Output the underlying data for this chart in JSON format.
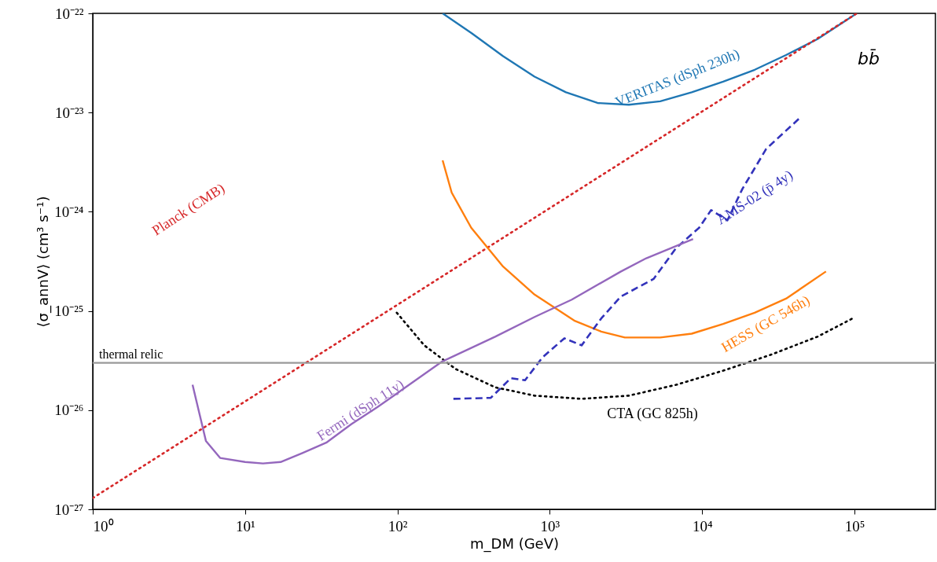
{
  "chart_data": {
    "type": "line",
    "xlabel": "m_DM (GeV)",
    "ylabel": "⟨σ_annV⟩ (cm³ s⁻¹)",
    "log": "xy",
    "xlim": [
      1,
      340000
    ],
    "ylim": [
      1e-27,
      1e-22
    ],
    "xticks": [
      {
        "value": 1,
        "label": "10⁰"
      },
      {
        "value": 10,
        "label": "10¹"
      },
      {
        "value": 100,
        "label": "10²"
      },
      {
        "value": 1000,
        "label": "10³"
      },
      {
        "value": 10000,
        "label": "10⁴"
      },
      {
        "value": 100000,
        "label": "10⁵"
      }
    ],
    "yticks": [
      {
        "value": 1e-27,
        "label": "10⁻²⁷"
      },
      {
        "value": 1e-26,
        "label": "10⁻²⁶"
      },
      {
        "value": 1e-25,
        "label": "10⁻²⁵"
      },
      {
        "value": 1e-24,
        "label": "10⁻²⁴"
      },
      {
        "value": 1e-23,
        "label": "10⁻²³"
      },
      {
        "value": 1e-22,
        "label": "10⁻²²"
      }
    ],
    "series": [
      {
        "name": "VERITAS (dSph 230h)",
        "color": "#1f77b4",
        "line_style": "solid",
        "x": [
          198,
          307,
          494,
          794,
          1276,
          2056,
          3304,
          5309,
          8551,
          13740,
          22130,
          35560,
          57150,
          103500
        ],
        "values": [
          1e-22,
          6.3e-23,
          3.7e-23,
          2.3e-23,
          1.6e-23,
          1.25e-23,
          1.2e-23,
          1.3e-23,
          1.6e-23,
          2.05e-23,
          2.7e-23,
          3.8e-23,
          5.5e-23,
          1e-22
        ]
      },
      {
        "name": "Planck (CMB)",
        "color": "#d62728",
        "line_style": "dotted",
        "x": [
          1,
          103500
        ],
        "values": [
          1.3e-27,
          1e-22
        ]
      },
      {
        "name": "HESS (GC 546h)",
        "color": "#ff7f0e",
        "line_style": "solid",
        "x": [
          198,
          227,
          305,
          494,
          795,
          1446,
          2175,
          3110,
          5309,
          8551,
          13740,
          22130,
          35560,
          65000
        ],
        "values": [
          3.3e-24,
          1.56e-24,
          6.9e-25,
          2.8e-25,
          1.46e-25,
          8e-26,
          6.2e-26,
          5.4e-26,
          5.4e-26,
          5.9e-26,
          7.4e-26,
          9.6e-26,
          1.33e-25,
          2.5e-25
        ]
      },
      {
        "name": "CTA (GC 825h)",
        "color": "#000000",
        "line_style": "dotted",
        "x": [
          99,
          150,
          241,
          438,
          795,
          1618,
          3304,
          6745,
          13740,
          27970,
          57150,
          100000
        ],
        "values": [
          9.6e-26,
          4.5e-26,
          2.6e-26,
          1.7e-26,
          1.4e-26,
          1.3e-26,
          1.4e-26,
          1.8e-26,
          2.5e-26,
          3.6e-26,
          5.5e-26,
          8.6e-26
        ]
      },
      {
        "name": "AMS-02 (p̄ 4y)",
        "color": "#3333bb",
        "line_style": "dashed",
        "x": [
          233,
          410,
          555,
          688,
          895,
          1247,
          1618,
          2175,
          2933,
          4800,
          6745,
          9560,
          11460,
          14660,
          18380,
          26340,
          43700
        ],
        "values": [
          1.3e-26,
          1.33e-26,
          2.1e-26,
          2e-26,
          3.4e-26,
          5.3e-26,
          4.5e-26,
          8.4e-26,
          1.4e-25,
          2.1e-25,
          4.3e-25,
          6.9e-25,
          1.04e-24,
          8.2e-25,
          1.7e-24,
          4.3e-24,
          8.8e-24
        ]
      },
      {
        "name": "Fermi (dSph 11y)",
        "color": "#9467bd",
        "line_style": "solid",
        "x": [
          4.52,
          5.53,
          6.85,
          10.0,
          13.1,
          17.1,
          23.8,
          34.1,
          49.7,
          73.8,
          107,
          197,
          438,
          795,
          1393,
          2933,
          4301,
          8720
        ],
        "values": [
          1.8e-26,
          4.9e-27,
          3.3e-27,
          3e-27,
          2.9e-27,
          3e-27,
          3.7e-27,
          4.7e-27,
          7.2e-27,
          1.07e-26,
          1.6e-26,
          3.1e-26,
          5.5e-26,
          8.7e-26,
          1.3e-25,
          2.5e-25,
          3.4e-25,
          5.3e-25
        ]
      }
    ],
    "ref_lines": [
      {
        "axis": "y",
        "value": 3e-26,
        "label": "thermal relic",
        "color": "#999999",
        "line_style": "solid"
      }
    ],
    "annotations": [
      "bb̄"
    ]
  }
}
